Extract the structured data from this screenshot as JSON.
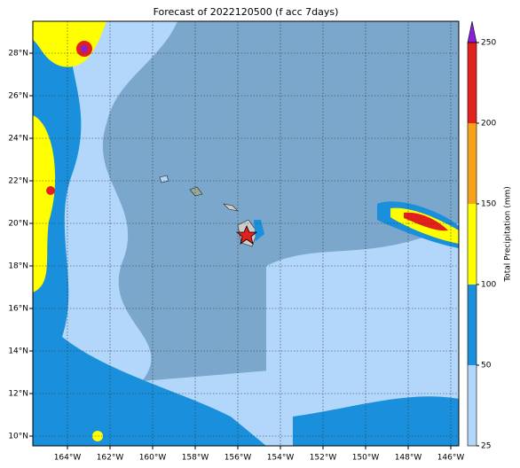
{
  "title": "Forecast of 2022120500 (f acc 7days)",
  "xlim": [
    -165.625,
    -145.625
  ],
  "ylim": [
    9.542,
    29.5
  ],
  "xticks": [
    {
      "value": -164,
      "label": "164°W"
    },
    {
      "value": -162,
      "label": "162°W"
    },
    {
      "value": -160,
      "label": "160°W"
    },
    {
      "value": -158,
      "label": "158°W"
    },
    {
      "value": -156,
      "label": "156°W"
    },
    {
      "value": -154,
      "label": "154°W"
    },
    {
      "value": -152,
      "label": "152°W"
    },
    {
      "value": -150,
      "label": "150°W"
    },
    {
      "value": -148,
      "label": "148°W"
    },
    {
      "value": -146,
      "label": "146°W"
    }
  ],
  "yticks": [
    {
      "value": 10,
      "label": "10°N"
    },
    {
      "value": 12,
      "label": "12°N"
    },
    {
      "value": 14,
      "label": "14°N"
    },
    {
      "value": 16,
      "label": "16°N"
    },
    {
      "value": 18,
      "label": "18°N"
    },
    {
      "value": 20,
      "label": "20°N"
    },
    {
      "value": 22,
      "label": "22°N"
    },
    {
      "value": 24,
      "label": "24°N"
    },
    {
      "value": 26,
      "label": "26°N"
    },
    {
      "value": 28,
      "label": "28°N"
    }
  ],
  "colorbar": {
    "label": "Total Precipitation (mm)",
    "ticks": [
      25,
      50,
      100,
      150,
      200,
      250
    ],
    "colors": [
      "#b3d6fb",
      "#1a8fdb",
      "#ffff00",
      "#f7a21b",
      "#e3211c"
    ],
    "over_color": "#8b1fd6"
  }
}
